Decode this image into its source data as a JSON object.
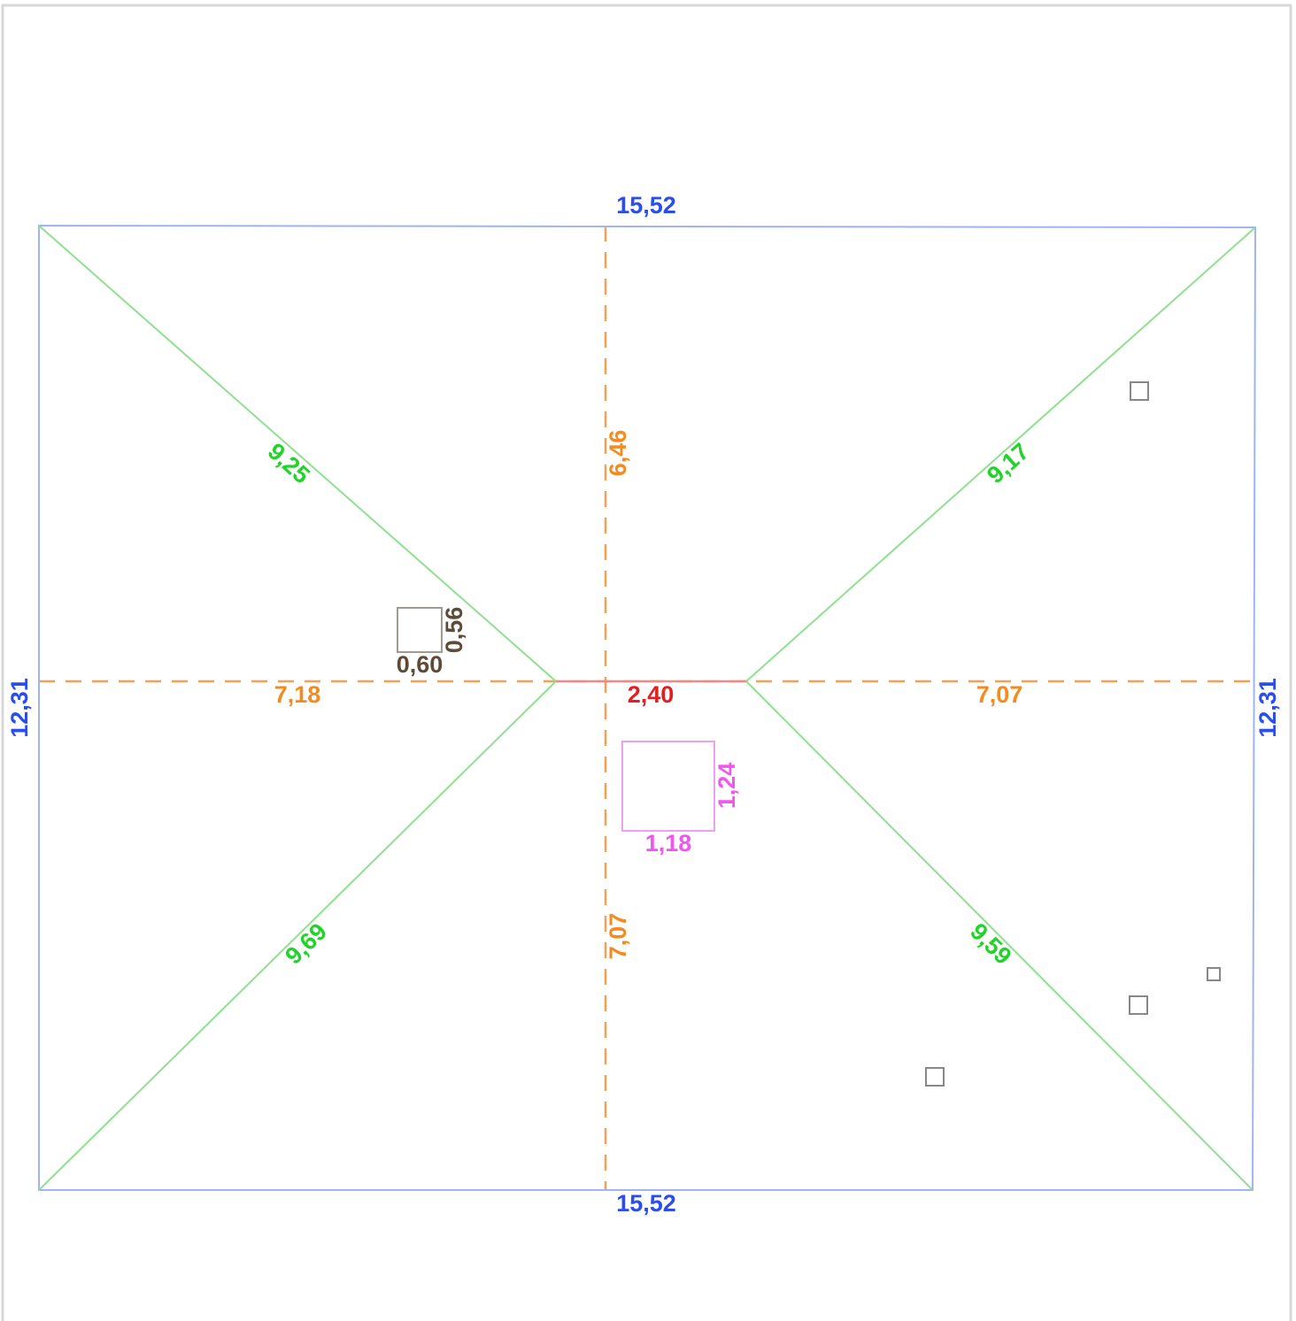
{
  "outline": {
    "top": "15,52",
    "bottom": "15,52",
    "left": "12,31",
    "right": "12,31"
  },
  "hips": {
    "top_left": "9,25",
    "top_right": "9,17",
    "bottom_left": "9,69",
    "bottom_right": "9,59"
  },
  "axes": {
    "upper": "6,46",
    "lower": "7,07",
    "left": "7,18",
    "right": "7,07"
  },
  "ridge": "2,40",
  "chimney": {
    "width": "0,60",
    "height": "0,56"
  },
  "skylight": {
    "width": "1,18",
    "height": "1,24"
  }
}
